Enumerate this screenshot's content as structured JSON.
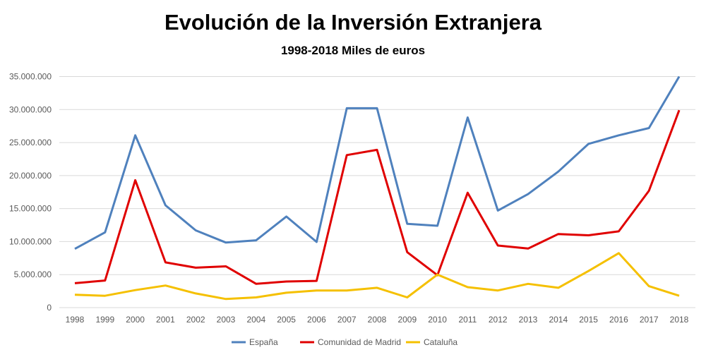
{
  "chart_data": {
    "type": "line",
    "title": "Evolución de la Inversión Extranjera",
    "subtitle": "1998-2018 Miles de euros",
    "xlabel": "",
    "ylabel": "",
    "ylim": [
      0,
      35000000
    ],
    "yticks": [
      0,
      5000000,
      10000000,
      15000000,
      20000000,
      25000000,
      30000000,
      35000000
    ],
    "ytick_labels": [
      "0",
      "5.000.000",
      "10.000.000",
      "15.000.000",
      "20.000.000",
      "25.000.000",
      "30.000.000",
      "35.000.000"
    ],
    "grid": true,
    "legend_position": "bottom",
    "categories": [
      "1998",
      "1999",
      "2000",
      "2001",
      "2002",
      "2003",
      "2004",
      "2005",
      "2006",
      "2007",
      "2008",
      "2009",
      "2010",
      "2011",
      "2012",
      "2013",
      "2014",
      "2015",
      "2016",
      "2017",
      "2018"
    ],
    "series": [
      {
        "name": "España",
        "color": "#4F81BD",
        "values": [
          8900000,
          11400000,
          26100000,
          15500000,
          11700000,
          9850000,
          10200000,
          13800000,
          9950000,
          30200000,
          30200000,
          12700000,
          12400000,
          28800000,
          14700000,
          17200000,
          20600000,
          24800000,
          26100000,
          27200000,
          35000000
        ]
      },
      {
        "name": "Comunidad de Madrid",
        "color": "#E00000",
        "values": [
          3700000,
          4100000,
          19300000,
          6850000,
          6050000,
          6250000,
          3600000,
          3950000,
          4050000,
          23100000,
          23900000,
          8400000,
          4900000,
          17400000,
          9400000,
          8950000,
          11150000,
          10950000,
          11550000,
          17700000,
          29900000
        ]
      },
      {
        "name": "Cataluña",
        "color": "#F5C000",
        "values": [
          1950000,
          1800000,
          2650000,
          3350000,
          2150000,
          1300000,
          1550000,
          2250000,
          2600000,
          2600000,
          3000000,
          1550000,
          5000000,
          3100000,
          2600000,
          3600000,
          3000000,
          5550000,
          8250000,
          3250000,
          1800000
        ]
      }
    ]
  }
}
